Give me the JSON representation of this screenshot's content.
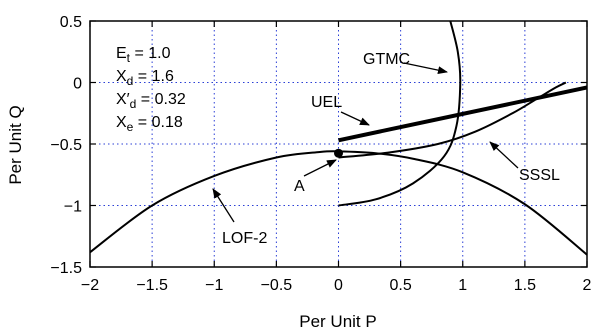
{
  "chart_data": {
    "type": "line",
    "xlabel": "Per Unit P",
    "ylabel": "Per Unit Q",
    "xlim": [
      -2,
      2
    ],
    "ylim": [
      -1.5,
      0.5
    ],
    "x_ticks": [
      {
        "value": -2,
        "label": "−2"
      },
      {
        "value": -1.5,
        "label": "−1.5"
      },
      {
        "value": -1,
        "label": "−1"
      },
      {
        "value": -0.5,
        "label": "−0.5"
      },
      {
        "value": 0,
        "label": "0"
      },
      {
        "value": 0.5,
        "label": "0.5"
      },
      {
        "value": 1,
        "label": "1"
      },
      {
        "value": 1.5,
        "label": "1.5"
      },
      {
        "value": 2,
        "label": "2"
      }
    ],
    "y_ticks": [
      {
        "value": 0.5,
        "label": "0.5"
      },
      {
        "value": 0,
        "label": "0"
      },
      {
        "value": -0.5,
        "label": "−0.5"
      },
      {
        "value": -1,
        "label": "−1"
      },
      {
        "value": -1.5,
        "label": "−1.5"
      }
    ],
    "grid": "dotted",
    "parameters": [
      {
        "sym": "E",
        "sub": "t",
        "prime": "",
        "val": " = 1.0"
      },
      {
        "sym": "X",
        "sub": "d",
        "prime": "",
        "val": " = 1.6"
      },
      {
        "sym": "X",
        "sub": "d",
        "prime": "′",
        "val": " = 0.32"
      },
      {
        "sym": "X",
        "sub": "e",
        "prime": "",
        "val": " = 0.18"
      }
    ],
    "series": [
      {
        "name": "LOF-2",
        "points": [
          [
            -2,
            -1.38
          ],
          [
            -1.5,
            -1.0
          ],
          [
            -1,
            -0.76
          ],
          [
            -0.5,
            -0.61
          ],
          [
            -0.15,
            -0.565
          ],
          [
            0,
            -0.56
          ],
          [
            0.3,
            -0.575
          ],
          [
            0.6,
            -0.62
          ],
          [
            1,
            -0.73
          ],
          [
            1.5,
            -0.99
          ],
          [
            2,
            -1.4
          ]
        ]
      },
      {
        "name": "GTMC",
        "points": [
          [
            0,
            -1.0
          ],
          [
            0.3,
            -0.95
          ],
          [
            0.6,
            -0.82
          ],
          [
            0.85,
            -0.6
          ],
          [
            0.95,
            -0.35
          ],
          [
            0.98,
            0
          ],
          [
            0.96,
            0.25
          ],
          [
            0.9,
            0.5
          ]
        ]
      },
      {
        "name": "UEL",
        "points": [
          [
            0,
            -0.47
          ],
          [
            2,
            -0.04
          ]
        ]
      },
      {
        "name": "SSSL",
        "points": [
          [
            0,
            -0.61
          ],
          [
            0.4,
            -0.57
          ],
          [
            0.8,
            -0.5
          ],
          [
            1.1,
            -0.4
          ],
          [
            1.4,
            -0.25
          ],
          [
            1.6,
            -0.13
          ],
          [
            1.75,
            -0.04
          ],
          [
            1.83,
            0
          ]
        ]
      }
    ],
    "points": [
      {
        "name": "A",
        "x": 0,
        "y": -0.575
      }
    ],
    "annotations": [
      {
        "text": "GTMC",
        "series": "GTMC"
      },
      {
        "text": "UEL",
        "series": "UEL"
      },
      {
        "text": "SSSL",
        "series": "SSSL"
      },
      {
        "text": "A",
        "series": "A"
      },
      {
        "text": "LOF-2",
        "series": "LOF-2"
      }
    ]
  }
}
